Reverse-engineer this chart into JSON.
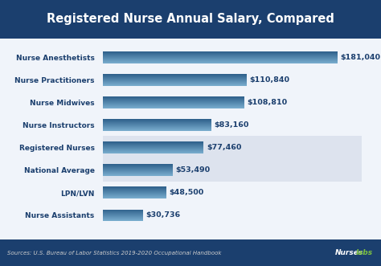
{
  "title": "Registered Nurse Annual Salary, Compared",
  "categories": [
    "Nurse Assistants",
    "LPN/LVN",
    "National Average",
    "Registered Nurses",
    "Nurse Instructors",
    "Nurse Midwives",
    "Nurse Practitioners",
    "Nurse Anesthetists"
  ],
  "values": [
    30736,
    48500,
    53490,
    77460,
    83160,
    108810,
    110840,
    181040
  ],
  "labels": [
    "$30,736",
    "$48,500",
    "$53,490",
    "$77,460",
    "$83,160",
    "$108,810",
    "$110,840",
    "$181,040"
  ],
  "highlight_indices": [
    2,
    3
  ],
  "bar_color_top": "#2d5f8a",
  "bar_color_bottom": "#7aaecf",
  "highlight_bg": "#dde3ee",
  "title_bg": "#1b3f6e",
  "title_color": "#ffffff",
  "label_color": "#1b3f6e",
  "category_color": "#1b3f6e",
  "source_text": "Sources: U.S. Bureau of Labor Statistics 2019-2020 Occupational Handbook",
  "footer_bg": "#1b3f6e",
  "footer_text_color": "#cccccc",
  "nurseslabs_white": "#ffffff",
  "nurseslabs_green": "#7dc242",
  "bg_color": "#f0f4fa",
  "max_val": 200000,
  "title_fontsize": 10.5,
  "label_fontsize": 6.8,
  "cat_fontsize": 6.5
}
